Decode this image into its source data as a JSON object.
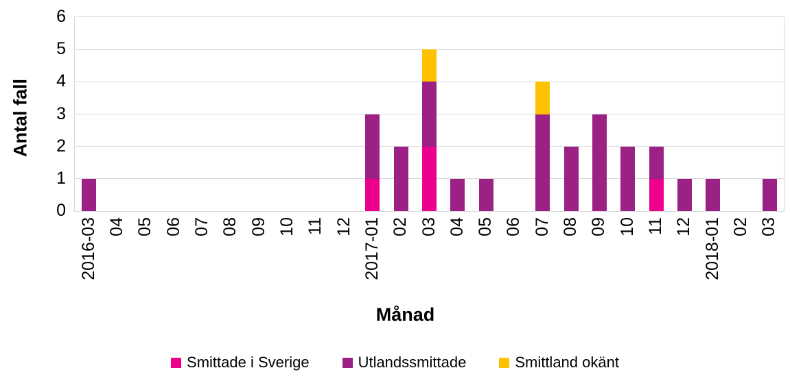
{
  "chart_data": {
    "type": "bar",
    "stacked": true,
    "title": "",
    "xlabel": "Månad",
    "ylabel": "Antal fall",
    "ylim": [
      0,
      6
    ],
    "yticks": [
      0,
      1,
      2,
      3,
      4,
      5,
      6
    ],
    "grid": true,
    "legend_position": "bottom",
    "categories": [
      "2016-03",
      "04",
      "05",
      "06",
      "07",
      "08",
      "09",
      "10",
      "11",
      "12",
      "2017-01",
      "02",
      "03",
      "04",
      "05",
      "06",
      "07",
      "08",
      "09",
      "10",
      "11",
      "12",
      "2018-01",
      "02",
      "03"
    ],
    "series": [
      {
        "name": "Smittade i Sverige",
        "color": "#EC008C",
        "values": [
          0,
          0,
          0,
          0,
          0,
          0,
          0,
          0,
          0,
          0,
          1,
          0,
          2,
          0,
          0,
          0,
          0,
          0,
          0,
          0,
          1,
          0,
          0,
          0,
          0
        ]
      },
      {
        "name": "Utlandssmittade",
        "color": "#9B2284",
        "values": [
          1,
          0,
          0,
          0,
          0,
          0,
          0,
          0,
          0,
          0,
          2,
          2,
          2,
          1,
          1,
          0,
          3,
          2,
          3,
          2,
          1,
          1,
          1,
          0,
          1
        ]
      },
      {
        "name": "Smittland okänt",
        "color": "#FFC203",
        "values": [
          0,
          0,
          0,
          0,
          0,
          0,
          0,
          0,
          0,
          0,
          0,
          0,
          1,
          0,
          0,
          0,
          1,
          0,
          0,
          0,
          0,
          0,
          0,
          0,
          0
        ]
      }
    ]
  },
  "colors": {
    "gridline": "#D9D9D9",
    "plot_border": "#D9D9D9",
    "axis_text": "#000000",
    "background": "#FFFFFF"
  }
}
